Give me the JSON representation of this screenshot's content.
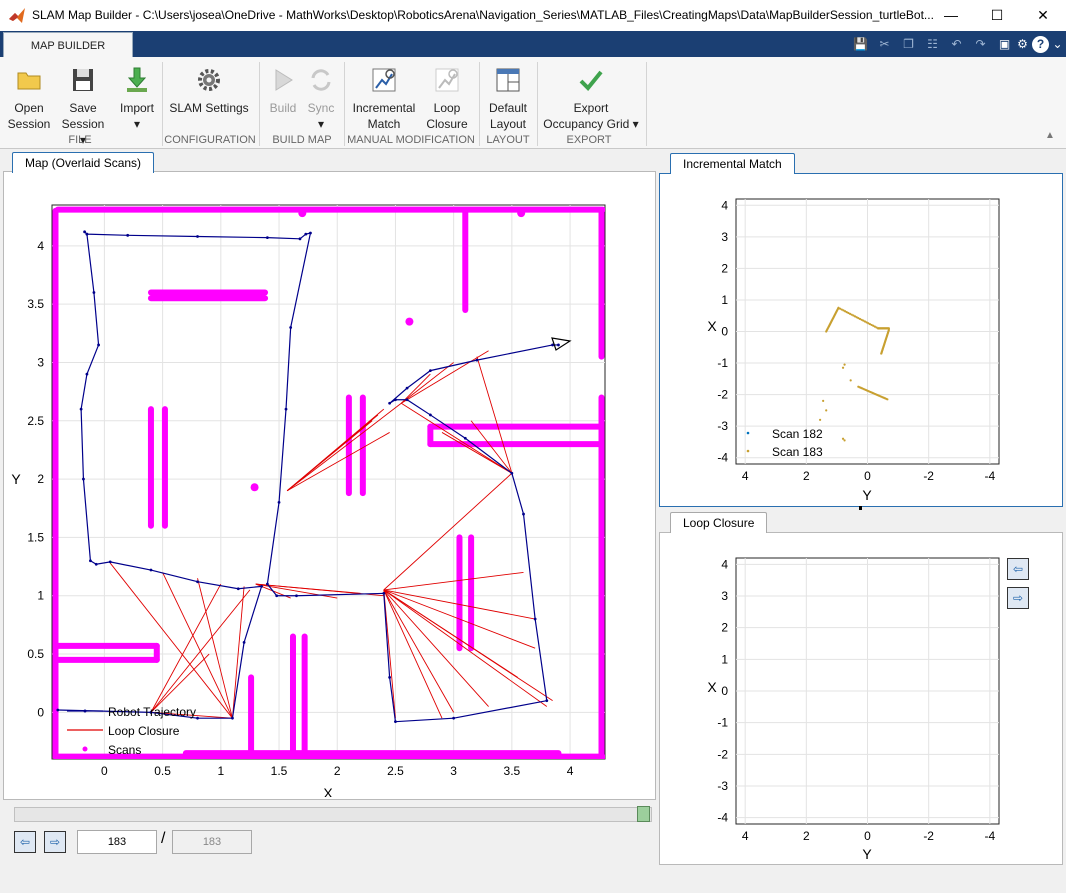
{
  "window": {
    "title": "SLAM Map Builder - C:\\Users\\josea\\OneDrive - MathWorks\\Desktop\\RoboticsArena\\Navigation_Series\\MATLAB_Files\\CreatingMaps\\Data\\MapBuilderSession_turtleBot..."
  },
  "ribbon": {
    "tab": "MAP BUILDER",
    "groups": [
      {
        "name": "FILE",
        "buttons": [
          {
            "l1": "Open",
            "l2": "Session"
          },
          {
            "l1": "Save",
            "l2": "Session"
          },
          {
            "l1": "Import",
            "l2": ""
          }
        ]
      },
      {
        "name": "CONFIGURATION",
        "buttons": [
          {
            "l1": "SLAM Settings",
            "l2": ""
          }
        ]
      },
      {
        "name": "BUILD MAP",
        "buttons": [
          {
            "l1": "Build",
            "l2": ""
          },
          {
            "l1": "Sync",
            "l2": ""
          }
        ]
      },
      {
        "name": "MANUAL MODIFICATION",
        "buttons": [
          {
            "l1": "Incremental",
            "l2": "Match"
          },
          {
            "l1": "Loop",
            "l2": "Closure"
          }
        ]
      },
      {
        "name": "LAYOUT",
        "buttons": [
          {
            "l1": "Default",
            "l2": "Layout"
          }
        ]
      },
      {
        "name": "EXPORT",
        "buttons": [
          {
            "l1": "Export",
            "l2": "Occupancy Grid"
          }
        ]
      }
    ]
  },
  "panels": {
    "map_tab": "Map (Overlaid Scans)",
    "incremental_tab": "Incremental Match",
    "loop_tab": "Loop Closure"
  },
  "scan_nav": {
    "current": "183",
    "separator": "/",
    "total": "183",
    "slider_fraction": 1.0
  },
  "colors": {
    "scans": "#ff00ff",
    "trajectory": "#00008b",
    "loop_closure": "#e00000",
    "scan182": "#0072bd",
    "scan183": "#c8a030",
    "ribbon_tab_bar": "#1b3f73"
  },
  "chart_data": [
    {
      "type": "line",
      "xlabel": "X",
      "ylabel": "Y",
      "xlim": [
        -0.45,
        4.3
      ],
      "ylim": [
        -0.4,
        4.35
      ],
      "xticks": [
        "0",
        "0.5",
        "1",
        "1.5",
        "2",
        "2.5",
        "3",
        "3.5",
        "4"
      ],
      "yticks": [
        "0",
        "0.5",
        "1",
        "1.5",
        "2",
        "2.5",
        "3",
        "3.5",
        "4"
      ],
      "grid": true,
      "legend_position": "bottom-left",
      "legend": [
        "Robot Trajectory",
        "Loop Closure",
        "Scans"
      ],
      "trajectory": [
        [
          -0.17,
          4.12
        ],
        [
          -0.15,
          4.1
        ],
        [
          0.2,
          4.09
        ],
        [
          0.8,
          4.08
        ],
        [
          1.4,
          4.07
        ],
        [
          1.68,
          4.06
        ],
        [
          1.73,
          4.1
        ],
        [
          1.77,
          4.11
        ],
        [
          1.6,
          3.3
        ],
        [
          1.56,
          2.6
        ],
        [
          1.5,
          1.8
        ],
        [
          1.4,
          1.1
        ],
        [
          1.48,
          1.0
        ],
        [
          1.65,
          1.0
        ],
        [
          2.4,
          1.02
        ],
        [
          2.45,
          0.3
        ],
        [
          2.5,
          -0.08
        ],
        [
          3.0,
          -0.05
        ],
        [
          3.8,
          0.1
        ],
        [
          3.7,
          0.8
        ],
        [
          3.6,
          1.7
        ],
        [
          3.5,
          2.05
        ],
        [
          3.1,
          2.35
        ],
        [
          2.8,
          2.55
        ],
        [
          2.6,
          2.68
        ],
        [
          2.5,
          2.68
        ],
        [
          2.45,
          2.65
        ],
        [
          2.6,
          2.78
        ],
        [
          2.8,
          2.93
        ],
        [
          3.2,
          3.02
        ],
        [
          3.85,
          3.15
        ],
        [
          3.9,
          3.15
        ]
      ],
      "trajectory_left": [
        [
          -0.15,
          4.1
        ],
        [
          -0.09,
          3.6
        ],
        [
          -0.05,
          3.15
        ],
        [
          -0.15,
          2.9
        ],
        [
          -0.2,
          2.6
        ],
        [
          -0.18,
          2.0
        ],
        [
          -0.12,
          1.3
        ],
        [
          -0.07,
          1.27
        ],
        [
          0.05,
          1.29
        ],
        [
          0.4,
          1.22
        ],
        [
          0.8,
          1.12
        ],
        [
          1.15,
          1.06
        ],
        [
          1.35,
          1.08
        ],
        [
          1.2,
          0.6
        ],
        [
          1.1,
          -0.05
        ],
        [
          0.8,
          -0.05
        ],
        [
          0.4,
          0.0
        ],
        [
          -0.4,
          0.02
        ]
      ],
      "closure_hubs": [
        {
          "from": [
            1.57,
            1.9
          ],
          "to": [
            [
              2.55,
              2.65
            ],
            [
              2.4,
              2.6
            ],
            [
              2.35,
              2.55
            ],
            [
              2.3,
              2.5
            ],
            [
              2.45,
              2.4
            ]
          ]
        },
        {
          "from": [
            2.55,
            2.65
          ],
          "to": [
            [
              3.5,
              2.05
            ],
            [
              2.8,
              2.9
            ],
            [
              3.0,
              3.0
            ],
            [
              3.3,
              3.1
            ]
          ]
        },
        {
          "from": [
            3.5,
            2.05
          ],
          "to": [
            [
              2.4,
              1.05
            ],
            [
              2.9,
              2.4
            ],
            [
              3.15,
              2.5
            ],
            [
              3.2,
              3.05
            ]
          ]
        },
        {
          "from": [
            2.4,
            1.05
          ],
          "to": [
            [
              3.85,
              0.1
            ],
            [
              3.7,
              0.8
            ],
            [
              3.6,
              1.2
            ],
            [
              3.0,
              0.0
            ],
            [
              3.3,
              0.05
            ],
            [
              2.5,
              -0.05
            ],
            [
              2.9,
              -0.05
            ],
            [
              3.8,
              0.05
            ],
            [
              3.55,
              0.3
            ],
            [
              3.7,
              0.55
            ]
          ]
        },
        {
          "from": [
            1.3,
            1.1
          ],
          "to": [
            [
              2.4,
              1.0
            ],
            [
              1.6,
              0.98
            ],
            [
              2.0,
              0.98
            ],
            [
              2.2,
              1.02
            ]
          ]
        },
        {
          "from": [
            1.1,
            -0.05
          ],
          "to": [
            [
              0.05,
              1.28
            ],
            [
              0.5,
              1.2
            ],
            [
              0.8,
              1.15
            ],
            [
              1.2,
              1.08
            ],
            [
              0.4,
              0.0
            ]
          ]
        },
        {
          "from": [
            0.4,
            0.0
          ],
          "to": [
            [
              1.0,
              1.1
            ],
            [
              1.25,
              1.05
            ],
            [
              0.9,
              0.5
            ]
          ]
        }
      ]
    },
    {
      "type": "scatter",
      "xlabel": "Y",
      "ylabel": "X",
      "xlim": [
        4.3,
        -4.3
      ],
      "ylim": [
        -4.2,
        4.2
      ],
      "xticks": [
        "4",
        "2",
        "0",
        "-2",
        "-4"
      ],
      "yticks": [
        "4",
        "3",
        "2",
        "1",
        "0",
        "-1",
        "-2",
        "-3",
        "-4"
      ],
      "grid": true,
      "legend_position": "bottom-left",
      "legend": [
        "Scan 182",
        "Scan 183"
      ]
    },
    {
      "type": "scatter",
      "xlabel": "Y",
      "ylabel": "X",
      "xlim": [
        4.3,
        -4.3
      ],
      "ylim": [
        -4.2,
        4.2
      ],
      "xticks": [
        "4",
        "2",
        "0",
        "-2",
        "-4"
      ],
      "yticks": [
        "4",
        "3",
        "2",
        "1",
        "0",
        "-1",
        "-2",
        "-3",
        "-4"
      ],
      "grid": true
    }
  ]
}
